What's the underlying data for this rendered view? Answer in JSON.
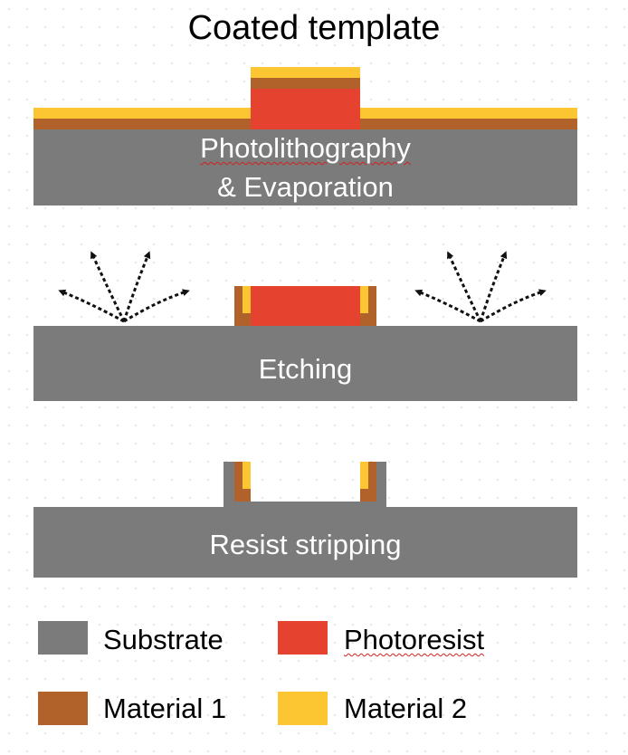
{
  "title": "Coated template",
  "steps": [
    {
      "label_line1": "Photolithography",
      "label_line2": "& Evaporation"
    },
    {
      "label": "Etching"
    },
    {
      "label": "Resist stripping"
    }
  ],
  "legend": {
    "items": [
      {
        "label": "Substrate",
        "color": "#7b7b7b"
      },
      {
        "label": "Photoresist",
        "color": "#e54330"
      },
      {
        "label": "Material 1",
        "color": "#b0622a"
      },
      {
        "label": "Material 2",
        "color": "#fcc632"
      }
    ]
  },
  "colors": {
    "substrate": "#7b7b7b",
    "photoresist": "#e54330",
    "material1": "#b0622a",
    "material2": "#fcc632"
  }
}
